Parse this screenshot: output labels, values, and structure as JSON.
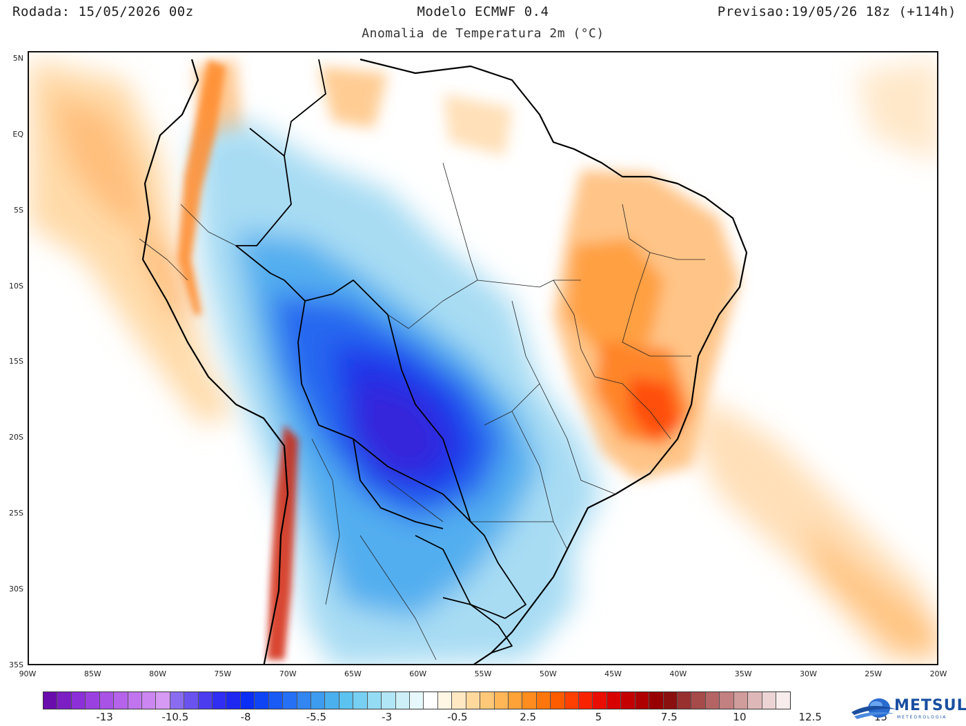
{
  "header": {
    "run": "Rodada: 15/05/2026 00z",
    "model": "Modelo ECMWF 0.4",
    "valid": "Previsao:19/05/26 18z (+114h)",
    "subtitle": "Anomalia de Temperatura 2m (°C)"
  },
  "map": {
    "lat_ticks": [
      "5N",
      "EQ",
      "5S",
      "10S",
      "15S",
      "20S",
      "25S",
      "30S",
      "35S"
    ],
    "lon_ticks": [
      "90W",
      "85W",
      "80W",
      "75W",
      "70W",
      "65W",
      "60W",
      "55W",
      "50W",
      "45W",
      "40W",
      "35W",
      "30W",
      "25W",
      "20W"
    ],
    "lat_range": [
      -35,
      5.5
    ],
    "lon_range": [
      -90,
      -20
    ],
    "anomaly_regions": [
      {
        "name": "cold-core-paraguay-mato-grosso",
        "lon": -59,
        "lat": -20,
        "value": -8
      },
      {
        "name": "cold-southern-brazil",
        "lon": -55,
        "lat": -27,
        "value": -5.5
      },
      {
        "name": "warm-minas-bahia",
        "lon": -42,
        "lat": -17,
        "value": 7.5
      },
      {
        "name": "warm-northeast-interior",
        "lon": -44,
        "lat": -9,
        "value": 5
      },
      {
        "name": "warm-pacific-peru",
        "lon": -83,
        "lat": -3,
        "value": 2.5
      },
      {
        "name": "warm-south-atlantic",
        "lon": -25,
        "lat": -27,
        "value": 2.5
      },
      {
        "name": "warm-chile-andes",
        "lon": -71,
        "lat": -27,
        "value": 10
      }
    ]
  },
  "colorbar": {
    "colors": [
      "#6a0dad",
      "#7b1fc4",
      "#8c2fd8",
      "#9b40e0",
      "#a852e6",
      "#b463ea",
      "#c075ee",
      "#cc86f2",
      "#d79af4",
      "#8a6cf0",
      "#6a52ee",
      "#4b3cf0",
      "#2f2ef2",
      "#1e28f0",
      "#0a2ef5",
      "#0f44f5",
      "#1a5af5",
      "#2570f5",
      "#3186f2",
      "#3d9cf0",
      "#4ab0ee",
      "#5cc2f0",
      "#77d0f2",
      "#93dcf4",
      "#b0e6f6",
      "#cdf0f8",
      "#e6f8fb",
      "#ffffff",
      "#fff6e4",
      "#ffe8c2",
      "#ffd89c",
      "#ffc878",
      "#ffb656",
      "#ffa238",
      "#ff8c1e",
      "#ff760c",
      "#ff5c00",
      "#ff4000",
      "#f82200",
      "#ea0e00",
      "#d80000",
      "#c40000",
      "#ae0000",
      "#980000",
      "#8a1010",
      "#983030",
      "#a64a4a",
      "#b46464",
      "#c28080",
      "#d09c9c",
      "#deb8b8",
      "#ecd4d4",
      "#f8ecec"
    ],
    "labels": [
      "-13",
      "-10.5",
      "-8",
      "-5.5",
      "-3",
      "-0.5",
      "2.5",
      "5",
      "7.5",
      "10",
      "12.5",
      "15"
    ],
    "label_index": [
      5,
      10,
      15,
      20,
      25,
      30,
      35,
      40,
      45,
      50,
      55,
      60
    ]
  },
  "logo": {
    "text": "METSUL",
    "subtext": "METEOROLOGIA"
  }
}
